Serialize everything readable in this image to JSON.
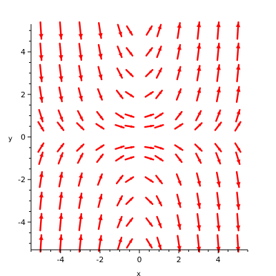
{
  "chart_data": {
    "type": "vector-field",
    "title": "",
    "xlabel": "x",
    "ylabel": "y",
    "xlim": [
      -5.5,
      5.5
    ],
    "ylim": [
      -5.3,
      5.3
    ],
    "grid": false,
    "legend": "none",
    "arrow_color": "#ff0000",
    "x_ticks": [
      -4,
      -2,
      0,
      2,
      4
    ],
    "x_tick_labels": [
      "-4",
      "-2",
      "0",
      "2",
      "4"
    ],
    "y_ticks": [
      -4,
      -2,
      0,
      2,
      4
    ],
    "y_tick_labels": [
      "-4",
      "-2",
      "0",
      "2",
      "4"
    ],
    "x_grid": [
      -5,
      -4,
      -3,
      -2,
      -1,
      -0.5,
      0.5,
      1,
      2,
      3,
      4,
      5
    ],
    "y_grid": [
      -5,
      -4,
      -3,
      -2,
      -1,
      -0.5,
      0.5,
      1,
      2,
      3,
      4,
      5
    ],
    "field": {
      "u": "1",
      "v": "0.6*x*y"
    },
    "arrow_max_length": 0.85
  }
}
